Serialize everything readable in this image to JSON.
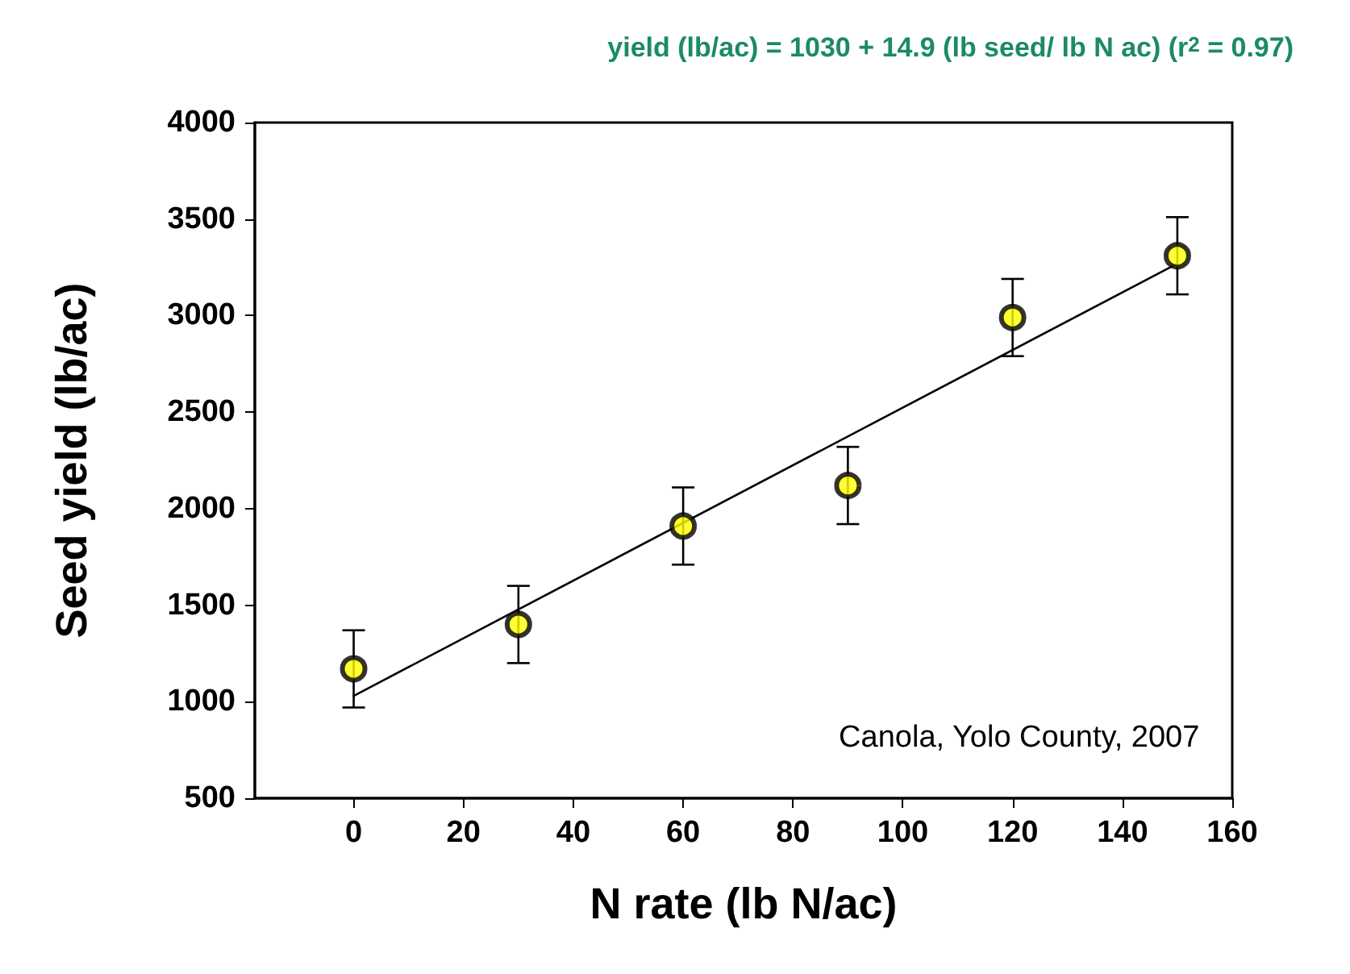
{
  "chart_data": {
    "type": "scatter",
    "title": "yield (lb/ac) = 1030 + 14.9 (lb seed/ lb N ac) (r$^{2}$ = 0.97)",
    "xlabel": "N rate (lb N/ac)",
    "ylabel": "Seed yield (lb/ac)",
    "annotations": [
      "Canola, Yolo County, 2007"
    ],
    "x": [
      0,
      30,
      60,
      90,
      120,
      150
    ],
    "series": [
      {
        "color": "#ffff00",
        "marker": "circle",
        "values": [
          1170,
          1400,
          1910,
          2120,
          2990,
          3310
        ],
        "errors": [
          200,
          200,
          200,
          200,
          200,
          200
        ]
      },
      {
        "type": "line",
        "color": "#000000",
        "marker": "none",
        "x": [
          0,
          150
        ],
        "values": [
          1030,
          3270
        ]
      }
    ],
    "xlim": [
      -18,
      160
    ],
    "xticks": [
      0,
      20,
      40,
      60,
      80,
      100,
      120,
      140,
      160
    ],
    "ylim": [
      500,
      4000
    ],
    "yticks": [
      500,
      1000,
      1500,
      2000,
      2500,
      3000,
      3500,
      4000
    ],
    "grid": false
  }
}
